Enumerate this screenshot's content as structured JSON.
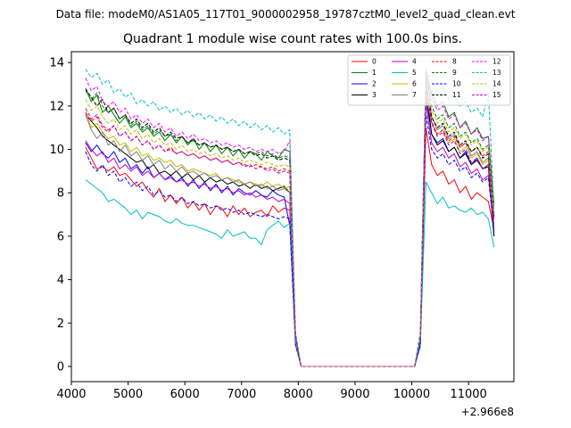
{
  "figure": {
    "suptitle": "Data file: modeM0/AS1A05_117T01_9000002958_19787cztM0_level2_quad_clean.evt",
    "title": "Quadrant 1 module wise count rates with 100.0s bins.",
    "x_offset_label": "+2.966e8"
  },
  "chart_data": {
    "type": "line",
    "title": "Quadrant 1 module wise count rates with 100.0s bins.",
    "xlabel": "",
    "ylabel": "",
    "x_offset": 296600000,
    "xlim": [
      4000,
      11800
    ],
    "ylim": [
      -0.7,
      14.5
    ],
    "xticks": [
      4000,
      5000,
      6000,
      7000,
      8000,
      9000,
      10000,
      11000
    ],
    "yticks": [
      0,
      2,
      4,
      6,
      8,
      10,
      12,
      14
    ],
    "grid": false,
    "legend_position": "top-right",
    "legend_columns": 4,
    "x_groups": {
      "A": [
        4250,
        4350,
        4450,
        4550,
        4650,
        4750,
        4850,
        4950,
        5050,
        5150,
        5250,
        5350,
        5450,
        5550,
        5650,
        5750,
        5850,
        5950,
        6050,
        6150,
        6250,
        6350,
        6450,
        6550,
        6650,
        6750,
        6850,
        6950,
        7050,
        7150,
        7250,
        7350,
        7450,
        7550,
        7650,
        7750,
        7850,
        7950,
        8050
      ],
      "B": [
        10050,
        10150,
        10250,
        10350,
        10450,
        10550,
        10650,
        10750,
        10850,
        10950,
        11050,
        11150,
        11250,
        11350,
        11450
      ]
    },
    "series": [
      {
        "name": "0",
        "color": "#ff0000",
        "dash": "",
        "a": [
          10.1,
          9.6,
          9.1,
          9.2,
          9.0,
          9.2,
          8.8,
          8.9,
          8.6,
          8.3,
          8.5,
          8.1,
          7.8,
          8.2,
          7.6,
          7.9,
          7.5,
          7.8,
          7.3,
          7.6,
          7.2,
          7.5,
          7.0,
          7.4,
          7.3,
          6.9,
          7.4,
          7.0,
          7.3,
          6.9,
          7.1,
          7.2,
          6.9,
          7.4,
          7.1,
          7.3,
          7.2,
          1.2,
          0
        ],
        "b": [
          0,
          1.0,
          11.0,
          9.3,
          8.8,
          9.0,
          8.4,
          8.6,
          8.0,
          8.3,
          7.7,
          8.0,
          7.8,
          7.6,
          6.3
        ]
      },
      {
        "name": "1",
        "color": "#008000",
        "dash": "",
        "a": [
          12.8,
          12.2,
          12.5,
          11.7,
          12.0,
          11.6,
          11.2,
          11.5,
          11.0,
          11.2,
          10.8,
          11.0,
          10.6,
          10.8,
          10.4,
          10.7,
          10.3,
          10.6,
          10.2,
          10.5,
          10.0,
          10.3,
          9.9,
          10.2,
          9.8,
          10.1,
          9.7,
          10.0,
          9.6,
          9.9,
          9.8,
          9.5,
          9.9,
          9.7,
          9.6,
          10.0,
          9.9,
          1.4,
          0
        ],
        "b": [
          0,
          1.2,
          13.6,
          12.6,
          12.0,
          12.2,
          11.5,
          11.7,
          11.0,
          11.3,
          10.7,
          11.0,
          10.5,
          10.6,
          7.5
        ]
      },
      {
        "name": "2",
        "color": "#0000ff",
        "dash": "",
        "a": [
          10.3,
          9.9,
          10.2,
          9.8,
          9.6,
          9.9,
          9.4,
          9.6,
          9.1,
          9.3,
          8.9,
          9.2,
          8.7,
          8.9,
          8.6,
          8.8,
          8.5,
          8.7,
          8.3,
          8.6,
          8.2,
          8.5,
          8.1,
          8.4,
          8.0,
          8.3,
          7.9,
          8.2,
          8.0,
          7.9,
          8.1,
          7.9,
          7.8,
          8.1,
          7.9,
          7.8,
          6.5,
          1.1,
          0
        ],
        "b": [
          0,
          1.1,
          12.4,
          10.7,
          10.3,
          10.5,
          9.9,
          10.1,
          9.6,
          9.9,
          9.3,
          9.6,
          9.1,
          9.3,
          6.0
        ]
      },
      {
        "name": "3",
        "color": "#000000",
        "dash": "",
        "a": [
          11.6,
          11.3,
          11.0,
          10.6,
          10.4,
          10.2,
          10.0,
          9.8,
          9.6,
          9.4,
          9.5,
          9.1,
          9.3,
          8.9,
          9.0,
          8.8,
          9.0,
          8.7,
          8.9,
          8.6,
          8.8,
          8.5,
          8.7,
          8.5,
          8.6,
          8.4,
          8.5,
          8.3,
          8.4,
          8.2,
          8.4,
          8.2,
          8.3,
          8.1,
          8.2,
          8.3,
          8.0,
          1.2,
          0
        ],
        "b": [
          0,
          1.2,
          12.9,
          10.7,
          10.2,
          10.4,
          9.9,
          10.1,
          9.6,
          9.8,
          9.3,
          9.5,
          9.1,
          9.2,
          6.0
        ]
      },
      {
        "name": "4",
        "color": "#bf00bf",
        "dash": "",
        "a": [
          10.4,
          10.0,
          9.7,
          9.9,
          9.4,
          9.6,
          9.1,
          9.3,
          9.0,
          9.2,
          8.8,
          9.0,
          8.7,
          8.9,
          8.6,
          8.7,
          8.5,
          8.6,
          8.4,
          8.5,
          8.3,
          8.4,
          8.2,
          8.3,
          8.1,
          8.2,
          8.0,
          8.1,
          7.9,
          8.0,
          7.8,
          7.9,
          7.7,
          7.8,
          7.6,
          7.7,
          7.5,
          1.1,
          0
        ],
        "b": [
          0,
          1.0,
          12.1,
          10.3,
          9.9,
          10.1,
          9.6,
          9.8,
          9.2,
          9.4,
          8.9,
          9.1,
          8.6,
          8.8,
          6.5
        ]
      },
      {
        "name": "5",
        "color": "#00bfbf",
        "dash": "",
        "a": [
          8.6,
          8.4,
          8.2,
          8.0,
          7.6,
          7.7,
          7.5,
          7.3,
          7.0,
          7.2,
          6.8,
          7.1,
          7.0,
          6.9,
          6.7,
          6.6,
          6.8,
          6.6,
          6.5,
          6.5,
          6.4,
          6.3,
          6.2,
          6.1,
          5.9,
          6.3,
          6.0,
          6.1,
          6.2,
          5.9,
          5.9,
          5.6,
          6.3,
          6.5,
          6.7,
          6.4,
          6.6,
          1.0,
          0
        ],
        "b": [
          0,
          0.9,
          8.5,
          8.0,
          7.5,
          7.8,
          7.3,
          7.4,
          7.2,
          7.1,
          7.3,
          7.0,
          7.1,
          6.8,
          5.5
        ]
      },
      {
        "name": "6",
        "color": "#bfbf00",
        "dash": "",
        "a": [
          11.7,
          11.0,
          11.2,
          10.8,
          10.5,
          10.6,
          10.2,
          10.3,
          9.9,
          10.1,
          9.7,
          9.8,
          9.5,
          9.6,
          9.4,
          9.5,
          9.2,
          9.3,
          9.0,
          9.1,
          9.0,
          8.9,
          8.8,
          8.9,
          8.6,
          8.7,
          8.6,
          8.5,
          8.4,
          8.5,
          8.4,
          8.3,
          8.5,
          8.3,
          8.4,
          8.2,
          8.3,
          1.2,
          0
        ],
        "b": [
          0,
          1.2,
          12.6,
          11.2,
          10.7,
          10.9,
          10.3,
          10.5,
          9.9,
          10.1,
          9.6,
          9.8,
          9.3,
          9.5,
          6.6
        ]
      },
      {
        "name": "7",
        "color": "#808080",
        "dash": "",
        "a": [
          11.6,
          10.9,
          10.5,
          10.8,
          10.2,
          10.4,
          9.9,
          10.2,
          9.7,
          9.9,
          9.5,
          9.7,
          9.3,
          9.5,
          9.1,
          9.3,
          9.0,
          9.2,
          8.9,
          9.0,
          8.8,
          8.9,
          8.7,
          8.8,
          8.6,
          8.7,
          8.5,
          8.6,
          8.4,
          8.5,
          8.3,
          8.4,
          8.2,
          8.3,
          8.1,
          8.2,
          8.0,
          1.2,
          0
        ],
        "b": [
          0,
          1.3,
          13.7,
          11.5,
          10.9,
          11.1,
          10.5,
          10.7,
          10.1,
          10.3,
          9.7,
          9.9,
          9.4,
          9.6,
          6.4
        ]
      },
      {
        "name": "8",
        "color": "#ff0000",
        "dash": "4,2",
        "a": [
          11.7,
          11.3,
          11.5,
          11.0,
          10.8,
          11.1,
          10.6,
          10.8,
          10.4,
          10.6,
          10.2,
          10.4,
          10.0,
          10.2,
          9.9,
          10.1,
          9.8,
          9.9,
          9.7,
          9.8,
          9.6,
          9.7,
          9.5,
          9.6,
          9.4,
          9.5,
          9.3,
          9.4,
          9.3,
          9.2,
          9.3,
          9.2,
          9.1,
          9.2,
          9.0,
          9.1,
          9.0,
          1.3,
          0
        ],
        "b": [
          0,
          1.2,
          13.2,
          11.3,
          10.7,
          10.9,
          10.4,
          10.6,
          10.1,
          10.3,
          9.9,
          10.1,
          9.7,
          9.9,
          6.8
        ]
      },
      {
        "name": "9",
        "color": "#008000",
        "dash": "4,2",
        "a": [
          12.7,
          12.3,
          12.6,
          12.0,
          11.7,
          11.9,
          11.4,
          11.6,
          11.1,
          11.3,
          10.9,
          11.1,
          10.7,
          10.9,
          10.6,
          10.7,
          10.4,
          10.6,
          10.3,
          10.4,
          10.2,
          10.3,
          10.1,
          10.2,
          10.0,
          10.1,
          9.9,
          10.0,
          9.8,
          9.9,
          9.8,
          9.9,
          9.7,
          9.8,
          9.6,
          9.7,
          9.6,
          1.4,
          0
        ],
        "b": [
          0,
          1.3,
          13.5,
          12.0,
          11.4,
          11.6,
          11.0,
          11.2,
          10.6,
          10.8,
          10.3,
          10.5,
          10.0,
          10.2,
          7.0
        ]
      },
      {
        "name": "10",
        "color": "#0000ff",
        "dash": "4,2",
        "a": [
          9.9,
          9.3,
          9.0,
          9.3,
          8.8,
          9.0,
          8.5,
          8.7,
          8.3,
          8.5,
          8.1,
          8.3,
          7.9,
          8.1,
          7.8,
          7.9,
          7.6,
          7.8,
          7.5,
          7.6,
          7.4,
          7.5,
          7.3,
          7.4,
          7.2,
          7.3,
          7.1,
          7.2,
          7.0,
          7.1,
          7.0,
          6.9,
          7.0,
          6.9,
          6.8,
          6.9,
          6.8,
          1.0,
          0
        ],
        "b": [
          0,
          1.0,
          11.6,
          10.0,
          9.6,
          9.8,
          9.3,
          9.5,
          9.0,
          9.2,
          8.7,
          8.9,
          8.5,
          8.7,
          6.2
        ]
      },
      {
        "name": "11",
        "color": "#000000",
        "dash": "4,2",
        "a": [
          12.8,
          12.4,
          12.0,
          12.3,
          11.7,
          11.9,
          11.4,
          11.6,
          11.2,
          11.4,
          11.0,
          11.2,
          10.8,
          11.0,
          10.6,
          10.8,
          10.5,
          10.6,
          10.3,
          10.5,
          10.2,
          10.3,
          10.1,
          10.2,
          10.0,
          10.1,
          9.9,
          10.0,
          9.8,
          9.9,
          9.7,
          9.8,
          9.6,
          9.7,
          9.5,
          9.6,
          9.5,
          1.4,
          0
        ],
        "b": [
          0,
          1.4,
          13.1,
          11.5,
          11.0,
          11.2,
          10.6,
          10.8,
          10.2,
          10.4,
          9.9,
          10.1,
          9.6,
          9.8,
          6.9
        ]
      },
      {
        "name": "12",
        "color": "#ff00ff",
        "dash": "4,2",
        "a": [
          13.3,
          12.7,
          12.9,
          12.2,
          12.0,
          12.2,
          11.7,
          11.9,
          11.4,
          11.6,
          11.2,
          11.4,
          11.0,
          11.2,
          10.8,
          11.0,
          10.6,
          10.8,
          10.5,
          10.7,
          10.4,
          10.5,
          10.3,
          10.4,
          10.2,
          10.3,
          10.1,
          10.2,
          10.0,
          10.1,
          9.9,
          10.0,
          9.9,
          10.0,
          9.8,
          9.9,
          10.4,
          1.5,
          0
        ],
        "b": [
          0,
          1.4,
          13.4,
          12.4,
          11.8,
          12.0,
          11.4,
          11.6,
          11.0,
          11.2,
          10.7,
          10.9,
          10.4,
          10.6,
          7.1
        ]
      },
      {
        "name": "13",
        "color": "#00bfbf",
        "dash": "4,2",
        "a": [
          13.7,
          13.3,
          13.5,
          13.0,
          13.2,
          12.6,
          12.8,
          12.4,
          12.6,
          12.1,
          12.3,
          12.0,
          12.2,
          11.8,
          12.0,
          11.7,
          11.9,
          11.6,
          11.8,
          11.5,
          11.7,
          11.4,
          11.6,
          11.3,
          11.5,
          11.2,
          11.4,
          11.1,
          11.3,
          11.0,
          11.2,
          10.9,
          11.1,
          10.8,
          11.0,
          10.7,
          10.9,
          1.6,
          0
        ],
        "b": [
          0,
          1.6,
          13.6,
          13.2,
          12.7,
          12.9,
          12.3,
          12.5,
          12.0,
          12.2,
          11.7,
          11.9,
          11.5,
          12.6,
          7.3
        ]
      },
      {
        "name": "14",
        "color": "#bfbf00",
        "dash": "4,2",
        "a": [
          12.3,
          11.8,
          12.0,
          11.5,
          11.2,
          11.4,
          10.9,
          11.1,
          10.7,
          10.9,
          10.5,
          10.7,
          10.3,
          10.5,
          10.2,
          10.3,
          10.0,
          10.2,
          9.9,
          10.0,
          9.8,
          9.9,
          9.7,
          9.8,
          9.6,
          9.7,
          9.5,
          9.6,
          9.4,
          9.5,
          9.4,
          9.3,
          9.4,
          9.3,
          9.2,
          9.3,
          9.2,
          1.3,
          0
        ],
        "b": [
          0,
          1.3,
          12.9,
          11.8,
          11.2,
          11.4,
          10.8,
          11.0,
          10.5,
          10.7,
          10.2,
          10.4,
          9.9,
          10.1,
          7.0
        ]
      },
      {
        "name": "15",
        "color": "#bf00bf",
        "dash": "4,2",
        "a": [
          11.9,
          11.4,
          11.6,
          11.1,
          10.9,
          11.1,
          10.6,
          10.8,
          10.4,
          10.6,
          10.2,
          10.4,
          10.0,
          10.2,
          9.9,
          10.0,
          9.8,
          9.9,
          9.7,
          9.8,
          9.6,
          9.7,
          9.5,
          9.6,
          9.4,
          9.5,
          9.3,
          9.4,
          9.2,
          9.3,
          9.1,
          9.2,
          9.0,
          9.1,
          8.9,
          9.0,
          8.9,
          1.3,
          0
        ],
        "b": [
          0,
          1.2,
          12.7,
          11.2,
          10.6,
          10.8,
          10.2,
          10.4,
          9.8,
          10.0,
          9.4,
          9.6,
          9.1,
          9.3,
          6.7
        ]
      }
    ]
  }
}
